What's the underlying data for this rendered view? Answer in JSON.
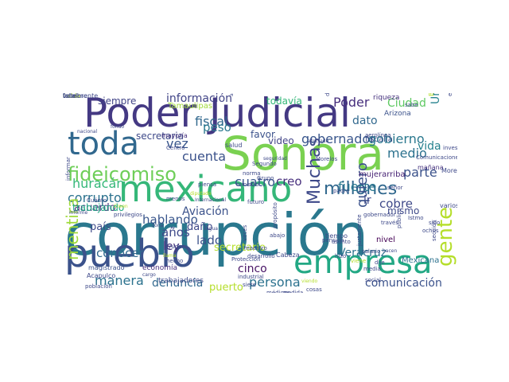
{
  "words": [
    {
      "text": "corrupción",
      "color": "#2a788e"
    },
    {
      "text": "Sonora",
      "color": "#7ad151"
    },
    {
      "text": "Poder Judicial",
      "color": "#443983"
    },
    {
      "text": "mexicano",
      "color": "#35b779"
    },
    {
      "text": "pueblo",
      "color": "#3b528b"
    },
    {
      "text": "toda",
      "color": "#31688e"
    },
    {
      "text": "empresa",
      "color": "#22a884"
    },
    {
      "text": "fideicomiso",
      "color": "#6ece58"
    },
    {
      "text": "millones",
      "color": "#31688e"
    },
    {
      "text": "gente",
      "color": "#b5de2b"
    },
    {
      "text": "persona",
      "color": "#2c728e"
    },
    {
      "text": "comunicación",
      "color": "#3b528b"
    },
    {
      "text": "información",
      "color": "#414487"
    },
    {
      "text": "huracán",
      "color": "#35b779"
    },
    {
      "text": "fiscal",
      "color": "#31688e"
    },
    {
      "text": "gobernador",
      "color": "#39568c"
    },
    {
      "text": "gobierno",
      "color": "#2a788e"
    },
    {
      "text": "peso",
      "color": "#2a788e"
    },
    {
      "text": "vez",
      "color": "#39568c"
    },
    {
      "text": "cuenta",
      "color": "#3b528b"
    },
    {
      "text": "secretaria",
      "color": "#3e4989"
    },
    {
      "text": "corrupto",
      "color": "#2c728e"
    },
    {
      "text": "cuatro",
      "color": "#39568c"
    },
    {
      "text": "creo",
      "color": "#472f7d"
    },
    {
      "text": "fuerte",
      "color": "#2a788e"
    },
    {
      "text": "Muchas",
      "color": "#3e4989"
    },
    {
      "text": "medio",
      "color": "#2c728e"
    },
    {
      "text": "parte",
      "color": "#3b528b"
    },
    {
      "text": "vida",
      "color": "#26828e"
    },
    {
      "text": "cobre",
      "color": "#3e4989"
    },
    {
      "text": "Poder",
      "color": "#472f7d"
    },
    {
      "text": "Ciudad",
      "color": "#5ec962"
    },
    {
      "text": "siempre",
      "color": "#414487"
    },
    {
      "text": "todavía",
      "color": "#35b779"
    },
    {
      "text": "dato",
      "color": "#31688e"
    },
    {
      "text": "quiero",
      "color": "#3b528b"
    },
    {
      "text": "mentira",
      "color": "#9fda3a"
    },
    {
      "text": "conocer",
      "color": "#31688e"
    },
    {
      "text": "manera",
      "color": "#2c728e"
    },
    {
      "text": "denuncia",
      "color": "#31688e"
    },
    {
      "text": "cinco",
      "color": "#471365"
    },
    {
      "text": "hablando",
      "color": "#39568c"
    },
    {
      "text": "años",
      "color": "#3e4989"
    },
    {
      "text": "ley",
      "color": "#46327e"
    },
    {
      "text": "lado",
      "color": "#3b528b"
    },
    {
      "text": "daño",
      "color": "#3e4989"
    },
    {
      "text": "país",
      "color": "#3e4989"
    },
    {
      "text": "acuerdo",
      "color": "#46327e"
    },
    {
      "text": "trabajando",
      "color": "#22a884"
    },
    {
      "text": "secretario",
      "color": "#b5de2b"
    },
    {
      "text": "puerto",
      "color": "#b5de2b"
    },
    {
      "text": "Veracruz",
      "color": "#2c728e"
    },
    {
      "text": "ir",
      "color": "#3e4989"
    },
    {
      "text": "mismo",
      "color": "#3e4989"
    },
    {
      "text": "Unidos",
      "color": "#26828e"
    },
    {
      "text": "video",
      "color": "#414487"
    },
    {
      "text": "favor",
      "color": "#3b528b"
    },
    {
      "text": "Aviación",
      "color": "#3b528b"
    },
    {
      "text": "Tamaulipas",
      "color": "#a0da39"
    },
    {
      "text": "fiscalía",
      "color": "#3b528b"
    },
    {
      "text": "mujerarriba",
      "color": "#482475"
    },
    {
      "text": "Mexicana",
      "color": "#2c728e"
    },
    {
      "text": "economía",
      "color": "#472f7d"
    },
    {
      "text": "trabajadores",
      "color": "#3e4989"
    },
    {
      "text": "nivel",
      "color": "#440154"
    },
    {
      "text": "mañana",
      "color": "#46327e"
    },
    {
      "text": "Arizona",
      "color": "#3b528b"
    },
    {
      "text": "riqueza",
      "color": "#46327e"
    },
    {
      "text": "Cabeza",
      "color": "#3e4989"
    },
    {
      "text": "tiempo",
      "color": "#3e4989"
    },
    {
      "text": "salud",
      "color": "#3e4989"
    },
    {
      "text": "mayoría",
      "color": "#46327e"
    },
    {
      "text": "magistrado",
      "color": "#3b528b"
    },
    {
      "text": "Acapulco",
      "color": "#3e4989"
    },
    {
      "text": "Morena",
      "color": "#3e4989"
    },
    {
      "text": "varios",
      "color": "#3e4989"
    },
    {
      "text": "Bonito Juárez",
      "color": "#b5de2b"
    },
    {
      "text": "informar",
      "color": "#3e4989"
    },
    {
      "text": "investigación",
      "color": "#3e4989"
    },
    {
      "text": "nacional",
      "color": "#3e4989"
    },
    {
      "text": "médicos",
      "color": "#3e4989"
    },
    {
      "text": "viendo",
      "color": "#b5de2b"
    },
    {
      "text": "Segundo",
      "color": "#3e4989"
    },
    {
      "text": "norma",
      "color": "#3e4989"
    },
    {
      "text": "hecho",
      "color": "#3e4989"
    },
    {
      "text": "Grupo",
      "color": "#3e4989"
    },
    {
      "text": "asunto",
      "color": "#3e4989"
    },
    {
      "text": "ochos",
      "color": "#3e4989"
    },
    {
      "text": "sido",
      "color": "#3e4989"
    },
    {
      "text": "informe",
      "color": "#3e4989"
    },
    {
      "text": "cosas",
      "color": "#3e4989"
    },
    {
      "text": "viene",
      "color": "#b5de2b"
    },
    {
      "text": "abajo",
      "color": "#3e4989"
    },
    {
      "text": "dije",
      "color": "#3e4989"
    },
    {
      "text": "hizo",
      "color": "#3e4989"
    },
    {
      "text": "media",
      "color": "#3e4989"
    },
    {
      "text": "nueva",
      "color": "#3e4989"
    },
    {
      "text": "veces",
      "color": "#3e4989"
    },
    {
      "text": "diputado",
      "color": "#b5de2b"
    },
    {
      "text": "Centro",
      "color": "#3e4989"
    },
    {
      "text": "futuro",
      "color": "#3e4989"
    },
    {
      "text": "Morelos",
      "color": "#3e4989"
    },
    {
      "text": "Istmo",
      "color": "#3e4989"
    },
    {
      "text": "ayudar",
      "color": "#3e4989"
    },
    {
      "text": "público",
      "color": "#3e4989"
    },
    {
      "text": "propósito",
      "color": "#3e4989"
    },
    {
      "text": "pensión",
      "color": "#3e4989"
    },
    {
      "text": "privilegios",
      "color": "#3e4989"
    },
    {
      "text": "zona",
      "color": "#3e4989"
    },
    {
      "text": "Cuánto",
      "color": "#3e4989"
    },
    {
      "text": "dólares",
      "color": "#3e4989"
    },
    {
      "text": "aerolínea",
      "color": "#3e4989"
    },
    {
      "text": "justamente",
      "color": "#3e4989"
    },
    {
      "text": "Comunicaciones",
      "color": "#3e4989"
    },
    {
      "text": "industrial",
      "color": "#3e4989"
    },
    {
      "text": "desarrollo",
      "color": "#3e4989"
    },
    {
      "text": "maestro",
      "color": "#3e4989"
    },
    {
      "text": "Protección",
      "color": "#3e4989"
    },
    {
      "text": "sección",
      "color": "#3e4989"
    },
    {
      "text": "social",
      "color": "#3e4989"
    },
    {
      "text": "salario",
      "color": "#3e4989"
    },
    {
      "text": "gobernador",
      "color": "#3e4989"
    },
    {
      "text": "señor",
      "color": "#3e4989"
    },
    {
      "text": "sabe",
      "color": "#3e4989"
    },
    {
      "text": "energía",
      "color": "#3e4989"
    },
    {
      "text": "padre",
      "color": "#3e4989"
    },
    {
      "text": "ministro",
      "color": "#3e4989"
    },
    {
      "text": "Internacional",
      "color": "#3e4989"
    },
    {
      "text": "piensa",
      "color": "#3e4989"
    },
    {
      "text": "menos",
      "color": "#3e4989"
    },
    {
      "text": "siete",
      "color": "#3e4989"
    },
    {
      "text": "medida",
      "color": "#3e4989"
    },
    {
      "text": "fondo",
      "color": "#3e4989"
    },
    {
      "text": "agua",
      "color": "#3e4989"
    },
    {
      "text": "llama",
      "color": "#b5de2b"
    },
    {
      "text": "Creen",
      "color": "#b5de2b"
    },
    {
      "text": "población",
      "color": "#3e4989"
    },
    {
      "text": "afectado",
      "color": "#3e4989"
    },
    {
      "text": "seguridad",
      "color": "#3e4989"
    },
    {
      "text": "hacen",
      "color": "#3e4989"
    },
    {
      "text": "través",
      "color": "#3e4989"
    },
    {
      "text": "cargo",
      "color": "#3e4989"
    },
    {
      "text": "alguna",
      "color": "#3e4989"
    },
    {
      "text": "falta",
      "color": "#3e4989"
    },
    {
      "text": "vale",
      "color": "#3e4989"
    },
    {
      "text": "habla",
      "color": "#b5de2b"
    },
    {
      "text": "hombre",
      "color": "#3e4989"
    },
    {
      "text": "totalmente",
      "color": "#3e4989"
    }
  ]
}
